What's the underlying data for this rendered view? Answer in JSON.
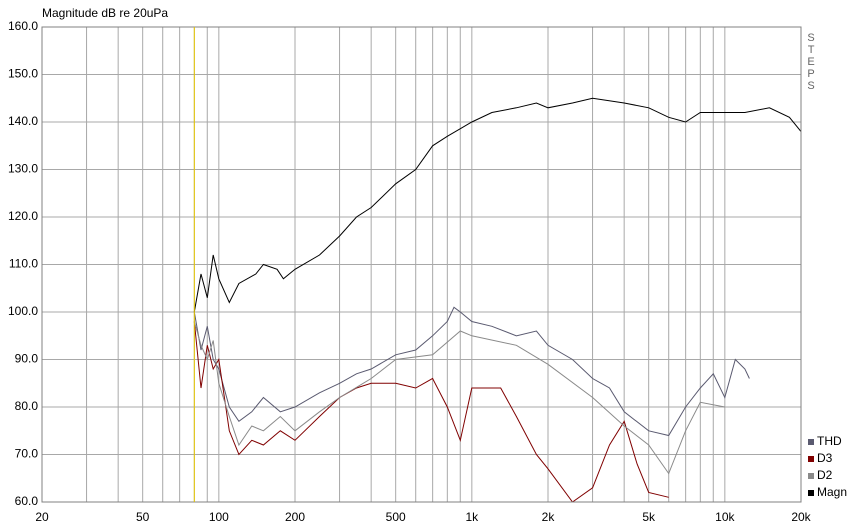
{
  "chart_data": {
    "type": "line",
    "title": "Magnitude dB re 20uPa",
    "right_label": "STEPS",
    "xscale": "log",
    "xlim": [
      20,
      20000
    ],
    "ylim": [
      60,
      160
    ],
    "xticks": [
      20,
      50,
      100,
      200,
      500,
      {
        "value": 1000,
        "label": "1k"
      },
      {
        "value": 2000,
        "label": "2k"
      },
      {
        "value": 5000,
        "label": "5k"
      },
      {
        "value": 10000,
        "label": "10k"
      },
      {
        "value": 20000,
        "label": "20k"
      }
    ],
    "xminorticks": [
      30,
      40,
      60,
      70,
      80,
      90,
      300,
      400,
      600,
      700,
      800,
      900,
      3000,
      4000,
      6000,
      7000,
      8000,
      9000
    ],
    "yticks": [
      {
        "value": 60,
        "label": "60.0"
      },
      {
        "value": 70,
        "label": "70.0"
      },
      {
        "value": 80,
        "label": "80.0"
      },
      {
        "value": 90,
        "label": "90.0"
      },
      {
        "value": 100,
        "label": "100.0"
      },
      {
        "value": 110,
        "label": "110.0"
      },
      {
        "value": 120,
        "label": "120.0"
      },
      {
        "value": 130,
        "label": "130.0"
      },
      {
        "value": 140,
        "label": "140.0"
      },
      {
        "value": 150,
        "label": "150.0"
      },
      {
        "value": 160,
        "label": "160.0"
      }
    ],
    "grid": true,
    "cursor_x": 80,
    "cursor_color": "#e8c800",
    "legend": "lower-right",
    "series": [
      {
        "name": "THD",
        "color": "#5a5a70",
        "x": [
          80,
          85,
          90,
          95,
          100,
          110,
          120,
          135,
          150,
          175,
          200,
          250,
          300,
          350,
          400,
          500,
          600,
          700,
          800,
          850,
          900,
          1000,
          1200,
          1500,
          1800,
          2000,
          2500,
          3000,
          3500,
          4000,
          5000,
          6000,
          7000,
          8000,
          9000,
          10000,
          11000,
          12000,
          12500
        ],
        "values": [
          100,
          92,
          97,
          90,
          88,
          80,
          77,
          79,
          82,
          79,
          80,
          83,
          85,
          87,
          88,
          91,
          92,
          95,
          98,
          101,
          100,
          98,
          97,
          95,
          96,
          93,
          90,
          86,
          84,
          79,
          75,
          74,
          80,
          84,
          87,
          82,
          90,
          88,
          86
        ]
      },
      {
        "name": "D3",
        "color": "#800000",
        "x": [
          80,
          85,
          90,
          95,
          100,
          110,
          120,
          135,
          150,
          175,
          200,
          250,
          300,
          350,
          400,
          500,
          600,
          700,
          800,
          900,
          1000,
          1300,
          1500,
          1800,
          2000,
          2500,
          3000,
          3500,
          4000,
          4500,
          5000,
          6000
        ],
        "values": [
          98,
          84,
          93,
          88,
          90,
          75,
          70,
          73,
          72,
          75,
          73,
          78,
          82,
          84,
          85,
          85,
          84,
          86,
          80,
          73,
          84,
          84,
          78,
          70,
          67,
          60,
          63,
          72,
          77,
          68,
          62,
          61
        ]
      },
      {
        "name": "D2",
        "color": "#8a8a8a",
        "x": [
          80,
          85,
          90,
          95,
          100,
          110,
          120,
          135,
          150,
          175,
          200,
          250,
          300,
          400,
          500,
          700,
          900,
          1000,
          1500,
          2000,
          3000,
          4000,
          5000,
          6000,
          7000,
          8000,
          10000
        ],
        "values": [
          98,
          93,
          90,
          94,
          85,
          78,
          72,
          76,
          75,
          78,
          75,
          79,
          82,
          86,
          90,
          91,
          96,
          95,
          93,
          89,
          82,
          76,
          72,
          66,
          75,
          81,
          80
        ]
      },
      {
        "name": "Magn",
        "color": "#000000",
        "x": [
          80,
          85,
          90,
          95,
          100,
          110,
          120,
          140,
          150,
          170,
          180,
          200,
          250,
          300,
          350,
          400,
          500,
          600,
          700,
          800,
          1000,
          1200,
          1500,
          1800,
          2000,
          2500,
          3000,
          4000,
          5000,
          6000,
          7000,
          8000,
          10000,
          12000,
          15000,
          18000,
          20000
        ],
        "values": [
          100,
          108,
          103,
          112,
          107,
          102,
          106,
          108,
          110,
          109,
          107,
          109,
          112,
          116,
          120,
          122,
          127,
          130,
          135,
          137,
          140,
          142,
          143,
          144,
          143,
          144,
          145,
          144,
          143,
          141,
          140,
          142,
          142,
          142,
          143,
          141,
          138
        ]
      }
    ]
  }
}
